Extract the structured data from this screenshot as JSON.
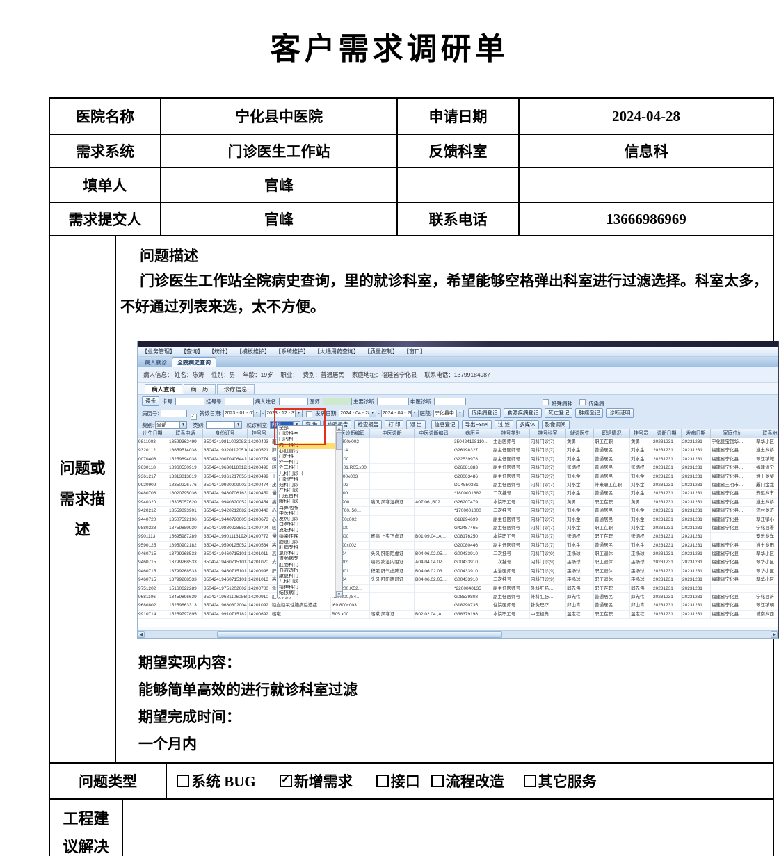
{
  "title": "客户需求调研单",
  "colors": {
    "red_annotation": "#e0301e",
    "combo_selection": "#2a5bbf",
    "dropdown_highlight": "#ffdf6b"
  },
  "form": {
    "rows": [
      {
        "label1": "医院名称",
        "value1": "宁化县中医院",
        "label2": "申请日期",
        "value2": "2024-04-28"
      },
      {
        "label1": "需求系统",
        "value1": "门诊医生工作站",
        "label2": "反馈科室",
        "value2": "信息科"
      },
      {
        "label1": "填单人",
        "value1": "官峰",
        "label2": "",
        "value2": ""
      },
      {
        "label1": "需求提交人",
        "value1": "官峰",
        "label2": "联系电话",
        "value2": "13666986969"
      }
    ],
    "desc_label": "问题或需求描述",
    "problem_title": "问题描述",
    "problem_text": "门诊医生工作站全院病史查询，里的就诊科室，希望能够空格弹出科室进行过滤选择。科室太多，不好通过列表来选，太不方便。",
    "expect_title": "期望实现内容：",
    "expect_text": "能够简单高效的进行就诊科室过滤",
    "deadline_title": "期望完成时间：",
    "deadline_text": "一个月内",
    "issue_type_label": "问题类型",
    "issue_types": [
      {
        "label": "系统 BUG",
        "checked": false
      },
      {
        "label": "新增需求",
        "checked": true
      },
      {
        "label": "接口",
        "checked": false
      },
      {
        "label": "流程改造",
        "checked": false
      },
      {
        "label": "其它服务",
        "checked": false
      }
    ],
    "suggestion_label": "工程建议解决方案"
  },
  "screenshot": {
    "menu_items": [
      "【业务管理】",
      "【查询】",
      "【统计】",
      "【模板维护】",
      "【系统维护】",
      "【大通用药查询】",
      "【质量控制】",
      "【窗口】"
    ],
    "window_tabs": [
      {
        "label": "病人就诊",
        "active": false
      },
      {
        "label": "全院病史查询",
        "active": true
      }
    ],
    "patient_info": "病人信息： 姓名：陈涛　 性别：男　 年龄：19岁　 职业：　 费别：普通居民　 家庭地址：福建省宁化县　 联系电话：13799184987",
    "sub_tabs": [
      {
        "label": "病人查询",
        "active": true
      },
      {
        "label": "病　历",
        "active": false
      },
      {
        "label": "诊疗信息",
        "active": false
      }
    ],
    "filter": {
      "read_card_button": "读卡",
      "row1_fields": [
        "卡号:",
        "挂号号:",
        "病人姓名:",
        "医师:",
        "主要诊断:",
        "中医诊断:"
      ],
      "row1_checkboxes": [
        "特殊病种",
        "传染病"
      ],
      "record_no_label": "病历号:",
      "visit_date": {
        "label": "就诊日期:",
        "checked": true,
        "from": "2023 - 01 - 01",
        "to": "2023 - 12 - 31"
      },
      "onset_date": {
        "label": "发病日期:",
        "checked": false,
        "from": "2024 - 04 - 28",
        "to": "2024 - 04 - 28"
      },
      "hospital": {
        "label": "医院:",
        "value": "宁化县中"
      },
      "row2_buttons": [
        "传染病登记",
        "食源疾病登记",
        "死亡登记",
        "肿瘤登记",
        "诊断证明"
      ],
      "fee": {
        "label": "费别:",
        "value": "全部"
      },
      "category": {
        "label": "类别:",
        "value": ""
      },
      "dept": {
        "label": "就诊科室:",
        "value": "内科"
      },
      "row3_buttons": [
        "查 询",
        "检验报告",
        "检查报告",
        "打 印",
        "退 出"
      ],
      "row3_buttons_right": [
        "信息登记",
        "导出Excel",
        "过 滤",
        "多媒体",
        "影像调阅"
      ]
    },
    "dropdown": {
      "items": [
        "全部",
        "门诊科室",
        "门内科",
        "内一科门",
        "心血管内",
        "门外科",
        "外一科门",
        "外二科门",
        "儿科门诊（",
        "门妇产科",
        "妇科门诊",
        "产科门诊",
        "门五官科",
        "眼科门诊",
        "耳鼻咽喉",
        "中医科门",
        "发热门诊",
        "口腔科门",
        "皮肤科门",
        "感染性疾",
        "肠道门诊",
        "肝病专科",
        "急诊科门",
        "胃肠病专",
        "肛肠科门",
        "血液透析",
        "康复科门",
        "儿科门诊",
        "精神科门",
        "结核病门"
      ],
      "highlighted_index": 3
    },
    "grid": {
      "headers": [
        "出生日期",
        "联系电话",
        "身份证号",
        "挂号号",
        "西医诊断",
        "西医诊断编码",
        "中医诊断",
        "中医诊断编码",
        "病历号",
        "挂号类别",
        "挂号科室",
        "就诊医生",
        "职退情况",
        "挂号员",
        "诊断日期",
        "发病日期",
        "家庭住址",
        "联系地址"
      ],
      "rows": [
        [
          "9811003",
          "13599362499",
          "350424198110030833",
          "14200423",
          "面神",
          "G51.800x002",
          "",
          "",
          "350424198110…",
          "主治医师号",
          "内科门诊(7)",
          "黄勇",
          "职工在职",
          "黄勇",
          "20231231",
          "20231231",
          "宁化县宝锇华…",
          "翠华小区"
        ],
        [
          "9320112",
          "18659514038",
          "350424193201120516",
          "14200521",
          "肺部",
          "J98.414",
          "",
          "",
          "G26198327",
          "副主任医师号",
          "内科门诊(7)",
          "刘水金",
          "普通居民",
          "刘水金",
          "20231231",
          "20231231",
          "福建省宁化县",
          "淮土乡桥"
        ],
        [
          "0070406",
          "15259894038",
          "350424200704064416",
          "14200774",
          "咳嗽",
          "R05.x00",
          "",
          "",
          "G22539978",
          "副主任医师号",
          "内科门诊(7)",
          "刘水金",
          "普通居民",
          "刘水金",
          "20231231",
          "20231231",
          "福建省宁化县",
          "翠江镇城"
        ],
        [
          "9630118",
          "18960530919",
          "350424196301180122",
          "14200496",
          "咳嗽",
          "F41.101,R05.x00",
          "",
          "",
          "G26681883",
          "副主任医师号",
          "内科门诊(7)",
          "张炳权",
          "普通居民",
          "张炳权",
          "20231231",
          "20231231",
          "福建省宁化县…",
          "福建省宁"
        ],
        [
          "9361217",
          "13313813819",
          "350424193612170534",
          "14200499",
          "上呼",
          "J06.900x003",
          "",
          "",
          "G20063486",
          "副主任医师号",
          "内科门诊(7)",
          "刘水金",
          "普通居民",
          "刘水金",
          "20231231",
          "20231231",
          "福建省宁化县…",
          "淮土乡梨"
        ],
        [
          "9920909",
          "18350226776",
          "350424199209090032",
          "14200474",
          "皮疹",
          "B21.x02",
          "",
          "",
          "DC4550331",
          "副主任医师号",
          "内科门诊(7)",
          "刘水金",
          "外来职工在职",
          "刘水金",
          "20231231",
          "20231231",
          "福建省三明市…",
          "厦门金龙"
        ],
        [
          "9480706",
          "18020795036",
          "350424194807061631",
          "14200459",
          "慢性",
          "J44.900",
          "",
          "",
          "*1800001882",
          "二次挂号",
          "内科门诊(7)",
          "刘水金",
          "普通居民",
          "刘水金",
          "20231231",
          "20231231",
          "福建省宁化县",
          "安远乡丰"
        ],
        [
          "9940320",
          "15305057620",
          "350424199403200522",
          "14200454",
          "痛风",
          "M10.900",
          "痛风 风寒湿痹证",
          "A07.06.,B02…",
          "G26207479",
          "本院职工号",
          "内科门诊(7)",
          "黄勇",
          "职工在职",
          "黄勇",
          "20231231",
          "20231231",
          "福建省宁化县",
          "淮土乡桥"
        ],
        [
          "9420212",
          "13559893901",
          "350424194202120822",
          "14200448",
          "心功",
          "R29.T00,I50…",
          "",
          "",
          "*1700001000",
          "二次挂号",
          "内科门诊(7)",
          "刘水金",
          "普通居民",
          "刘水金",
          "20231231",
          "20231231",
          "福建省宁化县…",
          "济村乡济"
        ],
        [
          "9440720",
          "13507592196",
          "350424194407200057",
          "14200673",
          "心功",
          "I50.900x002",
          "",
          "",
          "G18294699",
          "副主任医师号",
          "内科门诊(7)",
          "刘水金",
          "普通居民",
          "刘水金",
          "20231231",
          "20231231",
          "福建省宁化县",
          "翠江镇小"
        ],
        [
          "9880228",
          "18759889930",
          "350424198802285522",
          "14200704",
          "咳嗽",
          "R05.x00",
          "",
          "",
          "G42487465",
          "副主任医师号",
          "内科门诊(7)",
          "刘水金",
          "职工在职",
          "刘水金",
          "20231231",
          "20231231",
          "福建省宁化县",
          "宁化县署"
        ],
        [
          "9901113",
          "15695987289",
          "350424199011131924",
          "14200772",
          "慢性",
          "K29.500",
          "胃痛 上实下虚证",
          "B01.09.04.,A…",
          "G08176250",
          "本院职工号",
          "内科门诊(7)",
          "张炳权",
          "职工在职",
          "张炳权",
          "20231231",
          "20231231",
          "",
          "安乐乡洋"
        ],
        [
          "9590125",
          "18950902182",
          "350424195901250521",
          "14200534",
          "高血",
          "I10.x00x002",
          "",
          "",
          "G20080446",
          "副主任医师号",
          "内科门诊(7)",
          "刘水金",
          "普通居民",
          "刘水金",
          "20231231",
          "20231231",
          "福建省宁化县",
          "淮土乡田"
        ],
        [
          "9460715",
          "13799268533",
          "350424194607151018",
          "14201011",
          "高血",
          "I10.x04",
          "头风 肝阳阻虚证",
          "B04.06.02.05…",
          "G00433910",
          "二次挂号",
          "内科门诊(9)",
          "巫扬球",
          "职工退休",
          "巫扬球",
          "20231231",
          "20231231",
          "福建省宁化县",
          "翠华小区"
        ],
        [
          "9460715",
          "13799268533",
          "350424194607151018",
          "14201020",
          "支气",
          "J46.x02",
          "喘病 痰湿内阻证",
          "A04.04.04.02…",
          "G00433910",
          "二次挂号",
          "内科门诊(9)",
          "巫扬球",
          "职工退休",
          "巫扬球",
          "20231231",
          "20231231",
          "福建省宁化县",
          "翠华小区"
        ],
        [
          "9460715",
          "13799268533",
          "350424194607151018",
          "14200996",
          "肝胆",
          "D37.601",
          "积聚 肝气虚脾证",
          "B04.06.02.03…",
          "G00433910",
          "主治医师号",
          "内科门诊(9)",
          "巫扬球",
          "职工退休",
          "巫扬球",
          "20231231",
          "20231231",
          "福建省宁化县",
          "翠华小区"
        ],
        [
          "9460715",
          "13799268533",
          "350424194607151018",
          "14201013",
          "高血",
          "I10.x04",
          "头风 肝阳两司证",
          "B04.06.02.05…",
          "G00433910",
          "二次挂号",
          "内科门诊(9)",
          "巫扬球",
          "职工退休",
          "巫扬球",
          "20231231",
          "20231231",
          "福建省宁化县",
          "翠华小区"
        ],
        [
          "9751202",
          "15160622289",
          "350424197512020027",
          "14200780",
          "急性",
          "B90.200,K52…",
          "",
          "",
          "*2200040135",
          "副主任医师号",
          "外科肛肠…",
          "邱先伟",
          "职工在职",
          "邱先伟",
          "20231231",
          "20231231",
          "",
          ""
        ],
        [
          "9681106",
          "13459896639",
          "350424196811060868",
          "14200910",
          "肛裂 内痔",
          "K60.200,I84…",
          "",
          "",
          "G08539808",
          "副主任医师号",
          "外科肛肠…",
          "邱先伟",
          "普通居民",
          "邱先伟",
          "20231231",
          "20231231",
          "福建省宁化县",
          "宁化县济"
        ],
        [
          "9680802",
          "15259863313",
          "350424196808020048",
          "14201092",
          "缺血缺氧性脑病后遗症",
          "I69.800x003",
          "",
          "",
          "G18290735",
          "住院医师号",
          "针灸理疗…",
          "邱山青",
          "普通居民",
          "邱山青",
          "20231231",
          "20231231",
          "福建省宁化县…",
          "翠江镇朝"
        ],
        [
          "9910714",
          "15259797895",
          "350424199107151823",
          "14200692",
          "咳嗽",
          "R05.x00",
          "咳嗽 风寒证",
          "B02.02.04.,A…",
          "G38379198",
          "本院职工号",
          "中医经典…",
          "温定钦",
          "职工在职",
          "温定钦",
          "20231231",
          "20231231",
          "福建省宁化县",
          "城南乡西"
        ]
      ]
    }
  }
}
